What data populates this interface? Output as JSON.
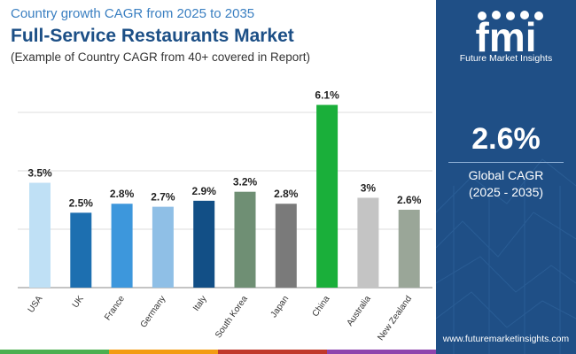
{
  "header": {
    "pre_title": "Country growth CAGR from 2025 to 2035",
    "title": "Full-Service Restaurants Market",
    "subtitle": "(Example of Country CAGR from 40+ covered in Report)"
  },
  "panel": {
    "logo_letters": "fmi",
    "logo_text": "Future Market Insights",
    "big_value": "2.6%",
    "value_label_line1": "Global CAGR",
    "value_label_line2": "(2025 - 2035)",
    "website": "www.futuremarketinsights.com",
    "background_color": "#1f4f86"
  },
  "chart_data": {
    "type": "bar",
    "categories": [
      "USA",
      "UK",
      "France",
      "Germany",
      "Italy",
      "South Korea",
      "Japan",
      "China",
      "Australia",
      "New Zealand"
    ],
    "values": [
      3.5,
      2.5,
      2.8,
      2.7,
      2.9,
      3.2,
      2.8,
      6.1,
      3.0,
      2.6
    ],
    "data_labels": [
      "3.5%",
      "2.5%",
      "2.8%",
      "2.7%",
      "2.9%",
      "3.2%",
      "2.8%",
      "6.1%",
      "3%",
      "2.6%"
    ],
    "bar_colors": [
      "#bfe0f5",
      "#1d6fb0",
      "#3d97dc",
      "#8fbfe6",
      "#124f86",
      "#6f8f74",
      "#7a7a7a",
      "#1aaf3a",
      "#c4c4c4",
      "#9aa698"
    ],
    "ylim": [
      0,
      6.5
    ],
    "grid": true,
    "legend": "none"
  },
  "bottom_strip_colors": [
    "#4caf50",
    "#f39c12",
    "#c0392b",
    "#8e44ad"
  ]
}
